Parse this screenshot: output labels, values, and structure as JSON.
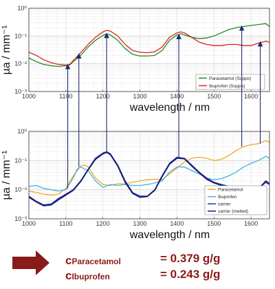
{
  "chart_data": [
    {
      "type": "line",
      "title": "",
      "xlabel": "wavelength / nm",
      "ylabel": "µa / mm⁻¹",
      "xlim": [
        1000,
        1650
      ],
      "ylim": [
        0.001,
        1
      ],
      "yscale": "log",
      "xticks": [
        "1000",
        "1100",
        "1200",
        "1300",
        "1400",
        "1500",
        "1600"
      ],
      "yticks": [
        "10⁰",
        "10⁻¹",
        "10⁻²",
        "10⁻³"
      ],
      "grid": true,
      "legend_position": "lower-right",
      "series": [
        {
          "name": "Paracetamol (Suppo)",
          "color": "#1f8b1f",
          "x": [
            1000,
            1020,
            1040,
            1060,
            1080,
            1100,
            1110,
            1120,
            1140,
            1160,
            1180,
            1200,
            1210,
            1220,
            1240,
            1260,
            1280,
            1300,
            1320,
            1340,
            1360,
            1380,
            1400,
            1410,
            1420,
            1440,
            1460,
            1480,
            1500,
            1520,
            1540,
            1560,
            1580,
            1600,
            1620,
            1640,
            1650
          ],
          "y": [
            0.016,
            0.012,
            0.0095,
            0.0085,
            0.008,
            0.0085,
            0.009,
            0.012,
            0.02,
            0.04,
            0.07,
            0.105,
            0.12,
            0.11,
            0.07,
            0.035,
            0.022,
            0.019,
            0.019,
            0.02,
            0.03,
            0.07,
            0.11,
            0.12,
            0.11,
            0.09,
            0.08,
            0.085,
            0.1,
            0.13,
            0.17,
            0.2,
            0.22,
            0.24,
            0.26,
            0.28,
            0.22
          ]
        },
        {
          "name": "Ibuprofen (Suppo)",
          "color": "#e02020",
          "x": [
            1000,
            1020,
            1040,
            1060,
            1080,
            1100,
            1110,
            1120,
            1140,
            1160,
            1180,
            1200,
            1210,
            1220,
            1240,
            1260,
            1280,
            1300,
            1320,
            1340,
            1360,
            1380,
            1400,
            1410,
            1420,
            1440,
            1460,
            1480,
            1500,
            1520,
            1540,
            1560,
            1580,
            1600,
            1620,
            1640,
            1650
          ],
          "y": [
            0.026,
            0.02,
            0.014,
            0.011,
            0.0095,
            0.009,
            0.0095,
            0.013,
            0.025,
            0.05,
            0.09,
            0.14,
            0.16,
            0.15,
            0.1,
            0.05,
            0.03,
            0.026,
            0.025,
            0.027,
            0.04,
            0.09,
            0.13,
            0.14,
            0.13,
            0.09,
            0.06,
            0.05,
            0.045,
            0.045,
            0.05,
            0.05,
            0.045,
            0.045,
            0.055,
            0.065,
            0.06
          ]
        }
      ]
    },
    {
      "type": "line",
      "title": "",
      "xlabel": "wavelength / nm",
      "ylabel": "µa / mm⁻¹",
      "xlim": [
        1000,
        1650
      ],
      "ylim": [
        0.001,
        1
      ],
      "yscale": "log",
      "xticks": [
        "1000",
        "1100",
        "1200",
        "1300",
        "1400",
        "1500",
        "1600"
      ],
      "yticks": [
        "10⁰",
        "10⁻¹",
        "10⁻²",
        "10⁻³"
      ],
      "grid": true,
      "legend_position": "lower-right",
      "series": [
        {
          "name": "Paracetamol",
          "color": "#f0a820",
          "x": [
            1000,
            1020,
            1040,
            1060,
            1080,
            1100,
            1120,
            1140,
            1150,
            1160,
            1180,
            1200,
            1220,
            1240,
            1260,
            1280,
            1300,
            1320,
            1340,
            1360,
            1380,
            1400,
            1420,
            1440,
            1460,
            1480,
            1500,
            1520,
            1540,
            1560,
            1580,
            1600,
            1620,
            1640,
            1650
          ],
          "y": [
            0.009,
            0.008,
            0.007,
            0.0065,
            0.007,
            0.011,
            0.03,
            0.065,
            0.07,
            0.06,
            0.025,
            0.015,
            0.014,
            0.016,
            0.016,
            0.018,
            0.02,
            0.022,
            0.023,
            0.022,
            0.035,
            0.055,
            0.09,
            0.12,
            0.13,
            0.12,
            0.1,
            0.11,
            0.15,
            0.22,
            0.3,
            0.35,
            0.38,
            0.48,
            0.42
          ]
        },
        {
          "name": "Ibuprofen",
          "color": "#40b0e8",
          "x": [
            1000,
            1020,
            1040,
            1060,
            1080,
            1100,
            1120,
            1130,
            1140,
            1160,
            1180,
            1200,
            1220,
            1240,
            1260,
            1280,
            1300,
            1320,
            1340,
            1360,
            1380,
            1400,
            1420,
            1440,
            1460,
            1480,
            1500,
            1520,
            1540,
            1560,
            1580,
            1600,
            1620,
            1640,
            1650
          ],
          "y": [
            0.013,
            0.014,
            0.011,
            0.01,
            0.009,
            0.01,
            0.025,
            0.05,
            0.06,
            0.045,
            0.02,
            0.012,
            0.015,
            0.014,
            0.015,
            0.014,
            0.014,
            0.015,
            0.017,
            0.02,
            0.04,
            0.06,
            0.06,
            0.045,
            0.035,
            0.025,
            0.022,
            0.024,
            0.03,
            0.04,
            0.06,
            0.08,
            0.1,
            0.14,
            0.12
          ]
        },
        {
          "name": "carrier",
          "color": "#2030c0",
          "x": [
            1000,
            1020,
            1040,
            1060,
            1080,
            1100,
            1120,
            1140,
            1160,
            1180,
            1200,
            1210,
            1220,
            1240,
            1260,
            1280,
            1300,
            1320,
            1340,
            1360,
            1380,
            1400,
            1420,
            1440,
            1460,
            1480,
            1500,
            1520,
            1540,
            1560,
            1580,
            1600,
            1620,
            1640,
            1650
          ],
          "y": [
            0.006,
            0.004,
            0.003,
            0.0032,
            0.005,
            0.007,
            0.01,
            0.02,
            0.05,
            0.12,
            0.18,
            0.2,
            0.17,
            0.07,
            0.02,
            0.008,
            0.006,
            0.006,
            0.01,
            0.03,
            0.08,
            0.13,
            0.12,
            0.07,
            0.04,
            0.025,
            0.018,
            0.015,
            0.013,
            0.012,
            0.01,
            0.01,
            0.011,
            0.018,
            0.015
          ]
        },
        {
          "name": "carrier (melted)",
          "color": "#1a1a5a",
          "x": [
            1000,
            1020,
            1040,
            1060,
            1080,
            1100,
            1120,
            1140,
            1160,
            1180,
            1200,
            1210,
            1220,
            1240,
            1260,
            1280,
            1300,
            1320,
            1340,
            1360,
            1380,
            1400,
            1420,
            1440,
            1460,
            1480,
            1500,
            1520,
            1540,
            1560,
            1580,
            1600,
            1620,
            1640,
            1650
          ],
          "y": [
            0.0055,
            0.0038,
            0.0028,
            0.003,
            0.0045,
            0.0065,
            0.0095,
            0.019,
            0.048,
            0.11,
            0.17,
            0.19,
            0.16,
            0.065,
            0.018,
            0.0075,
            0.0055,
            0.0058,
            0.0095,
            0.028,
            0.075,
            0.12,
            0.115,
            0.065,
            0.038,
            0.023,
            0.017,
            0.014,
            0.012,
            0.011,
            0.0095,
            0.0095,
            0.0105,
            0.02,
            0.016
          ]
        }
      ]
    }
  ],
  "arrows": {
    "color": "#1a2a6a",
    "links": [
      {
        "from_x": 1105,
        "from_y": 0.009,
        "to_x": 1105,
        "to_y": 0.011
      },
      {
        "from_x": 1135,
        "from_y": 0.022,
        "to_x": 1135,
        "to_y": 0.06
      },
      {
        "from_x": 1210,
        "from_y": 0.12,
        "to_x": 1210,
        "to_y": 0.2
      },
      {
        "from_x": 1405,
        "from_y": 0.11,
        "to_x": 1405,
        "to_y": 0.12
      },
      {
        "from_x": 1575,
        "from_y": 0.22,
        "to_x": 1575,
        "to_y": 0.3
      },
      {
        "from_x": 1625,
        "from_y": 0.06,
        "to_x": 1625,
        "to_y": 0.38
      }
    ]
  },
  "results": {
    "arrow_color": "#8b1a1a",
    "lines": [
      {
        "symbol": "c",
        "subscript": "Paracetamol",
        "value": "= 0.379 g/g"
      },
      {
        "symbol": "c",
        "subscript": "Ibuprofen",
        "value": "= 0.243 g/g"
      }
    ]
  }
}
